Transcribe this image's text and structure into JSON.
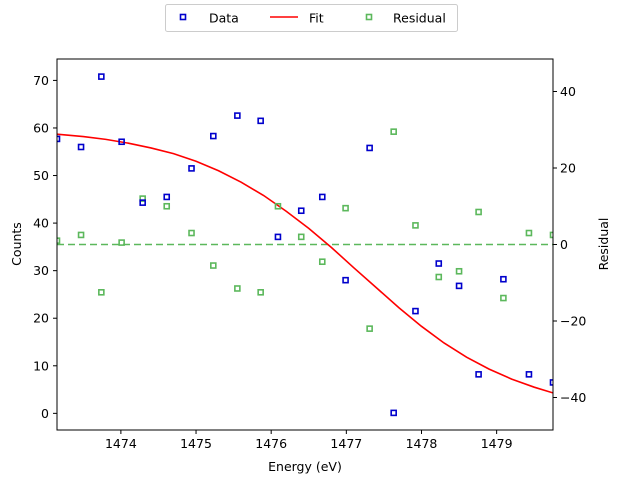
{
  "chart_data": {
    "type": "scatter",
    "xlabel": "Energy (eV)",
    "ylabel": "Counts",
    "y2label": "Residual",
    "xlim": [
      1473.15,
      1479.75
    ],
    "ylim": [
      -3.5,
      74.5
    ],
    "y2lim": [
      -48.5,
      48.5
    ],
    "x_ticks": [
      1474,
      1475,
      1476,
      1477,
      1478,
      1479
    ],
    "y_ticks": [
      0,
      10,
      20,
      30,
      40,
      50,
      60,
      70
    ],
    "y2_ticks": [
      -40,
      -20,
      0,
      20,
      40
    ],
    "legend": {
      "placement": "top-center",
      "entries": [
        "Data",
        "Fit",
        "Residual"
      ]
    },
    "grid": false,
    "colors": {
      "data": "#0000cc",
      "fit": "#ff0000",
      "residual": "#5cb85c"
    },
    "series": [
      {
        "name": "Data",
        "kind": "scatter",
        "axis": "left",
        "x": [
          1473.15,
          1473.47,
          1473.74,
          1474.01,
          1474.29,
          1474.61,
          1474.94,
          1475.23,
          1475.55,
          1475.86,
          1476.09,
          1476.4,
          1476.68,
          1476.99,
          1477.31,
          1477.63,
          1477.92,
          1478.23,
          1478.5,
          1478.76,
          1479.09,
          1479.43,
          1479.75
        ],
        "y": [
          57.7,
          56.0,
          70.8,
          57.1,
          44.3,
          45.5,
          51.5,
          58.3,
          62.6,
          61.5,
          37.1,
          42.6,
          45.5,
          28.0,
          55.8,
          0.1,
          21.5,
          31.5,
          26.8,
          8.2,
          28.2,
          8.2,
          6.5
        ]
      },
      {
        "name": "Fit",
        "kind": "line",
        "axis": "left",
        "x": [
          1473.15,
          1473.5,
          1473.8,
          1474.1,
          1474.4,
          1474.7,
          1475.0,
          1475.3,
          1475.6,
          1475.9,
          1476.2,
          1476.5,
          1476.8,
          1477.1,
          1477.4,
          1477.7,
          1478.0,
          1478.3,
          1478.6,
          1478.9,
          1479.2,
          1479.5,
          1479.75
        ],
        "y": [
          58.7,
          58.2,
          57.6,
          56.8,
          55.8,
          54.6,
          53.0,
          51.0,
          48.6,
          45.8,
          42.5,
          38.9,
          34.9,
          30.6,
          26.4,
          22.2,
          18.3,
          14.8,
          11.8,
          9.3,
          7.2,
          5.5,
          4.3
        ]
      },
      {
        "name": "Residual",
        "kind": "scatter",
        "axis": "right",
        "x": [
          1473.15,
          1473.47,
          1473.74,
          1474.01,
          1474.29,
          1474.61,
          1474.94,
          1475.23,
          1475.55,
          1475.86,
          1476.09,
          1476.4,
          1476.68,
          1476.99,
          1477.31,
          1477.63,
          1477.92,
          1478.23,
          1478.5,
          1478.76,
          1479.09,
          1479.43,
          1479.75
        ],
        "y": [
          1.0,
          2.5,
          -12.5,
          0.5,
          12.0,
          10.0,
          3.0,
          -5.5,
          -11.5,
          -12.5,
          10.0,
          2.0,
          -4.5,
          9.5,
          -22.0,
          29.5,
          5.0,
          -8.5,
          -7.0,
          8.5,
          -14.0,
          3.0,
          2.5
        ]
      }
    ],
    "reference_line": {
      "axis": "right",
      "y": 0,
      "style": "dashed"
    }
  }
}
